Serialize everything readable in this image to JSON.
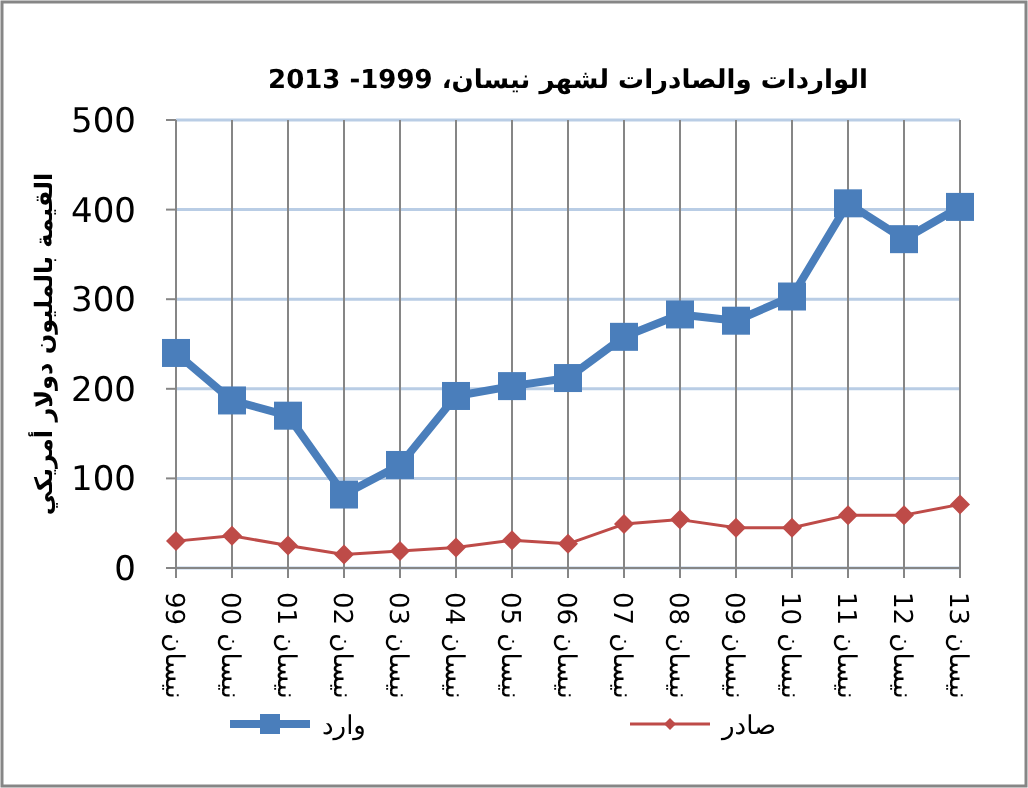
{
  "chart_data": {
    "type": "line",
    "title": "الواردات والصادرات لشهر نيسان، 1999- 2013",
    "ylabel": "القيمة بالمليون دولار أمريكي",
    "categories": [
      "نيسان 99",
      "نيسان 00",
      "نيسان 01",
      "نيسان 02",
      "نيسان 03",
      "نيسان 04",
      "نيسان 05",
      "نيسان 06",
      "نيسان 07",
      "نيسان 08",
      "نيسان 09",
      "نيسان 10",
      "نيسان 11",
      "نيسان 12",
      "نيسان 13"
    ],
    "series": [
      {
        "name": "وارد",
        "color": "#4a7ebb",
        "marker": "square",
        "values": [
          240,
          187,
          170,
          82,
          115,
          192,
          203,
          212,
          258,
          283,
          276,
          303,
          407,
          367,
          403
        ]
      },
      {
        "name": "صادر",
        "color": "#be4b48",
        "marker": "diamond",
        "values": [
          30,
          36,
          25,
          15,
          19,
          23,
          31,
          27,
          49,
          54,
          45,
          45,
          59,
          59,
          71
        ]
      }
    ],
    "ylim": [
      0,
      500
    ],
    "yticks": [
      0,
      100,
      200,
      300,
      400,
      500
    ],
    "grid": true,
    "legend": "bottom"
  }
}
